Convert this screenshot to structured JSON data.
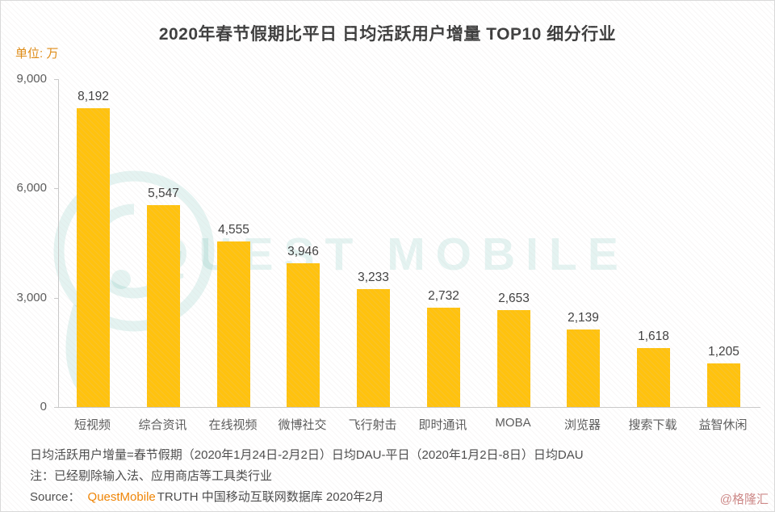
{
  "page": {
    "unit_label": "单位: 万",
    "watermark_text": "QUEST MOBILE",
    "attribution": "@格隆汇"
  },
  "chart_data": {
    "type": "bar",
    "title": "2020年春节假期比平日 日均活跃用户增量 TOP10 细分行业",
    "unit": "万",
    "categories": [
      "短视频",
      "综合资讯",
      "在线视频",
      "微博社交",
      "飞行射击",
      "即时通讯",
      "MOBA",
      "浏览器",
      "搜索下载",
      "益智休闲"
    ],
    "values": [
      8192,
      5547,
      4555,
      3946,
      3233,
      2732,
      2653,
      2139,
      1618,
      1205
    ],
    "value_labels": [
      "8,192",
      "5,547",
      "4,555",
      "3,946",
      "3,233",
      "2,732",
      "2,653",
      "2,139",
      "1,618",
      "1,205"
    ],
    "y_ticks": [
      "9,000",
      "6,000",
      "3,000",
      "0"
    ],
    "ylim": [
      0,
      9000
    ],
    "xlabel": "",
    "ylabel": "单位: 万",
    "grid": "off",
    "legend": "none",
    "bar_color": "#FFC20E"
  },
  "footer": {
    "definition": "日均活跃用户增量=春节假期（2020年1月24日-2月2日）日均DAU-平日（2020年1月2日-8日）日均DAU",
    "note": "注：已经剔除输入法、应用商店等工具类行业",
    "source_label": "Source：",
    "source_brand": "QuestMobile",
    "source_rest": "TRUTH 中国移动互联网数据库 2020年2月"
  },
  "colors": {
    "bar": "#FFC20E",
    "unit_label": "#DF8A12",
    "source_brand": "#F08300",
    "watermark": "rgba(47,166,143,0.13)",
    "attribution": "#CD8786",
    "axis_line": "#C9C9C9",
    "text_dark": "#3C3C3C",
    "text_gray": "#595959"
  }
}
